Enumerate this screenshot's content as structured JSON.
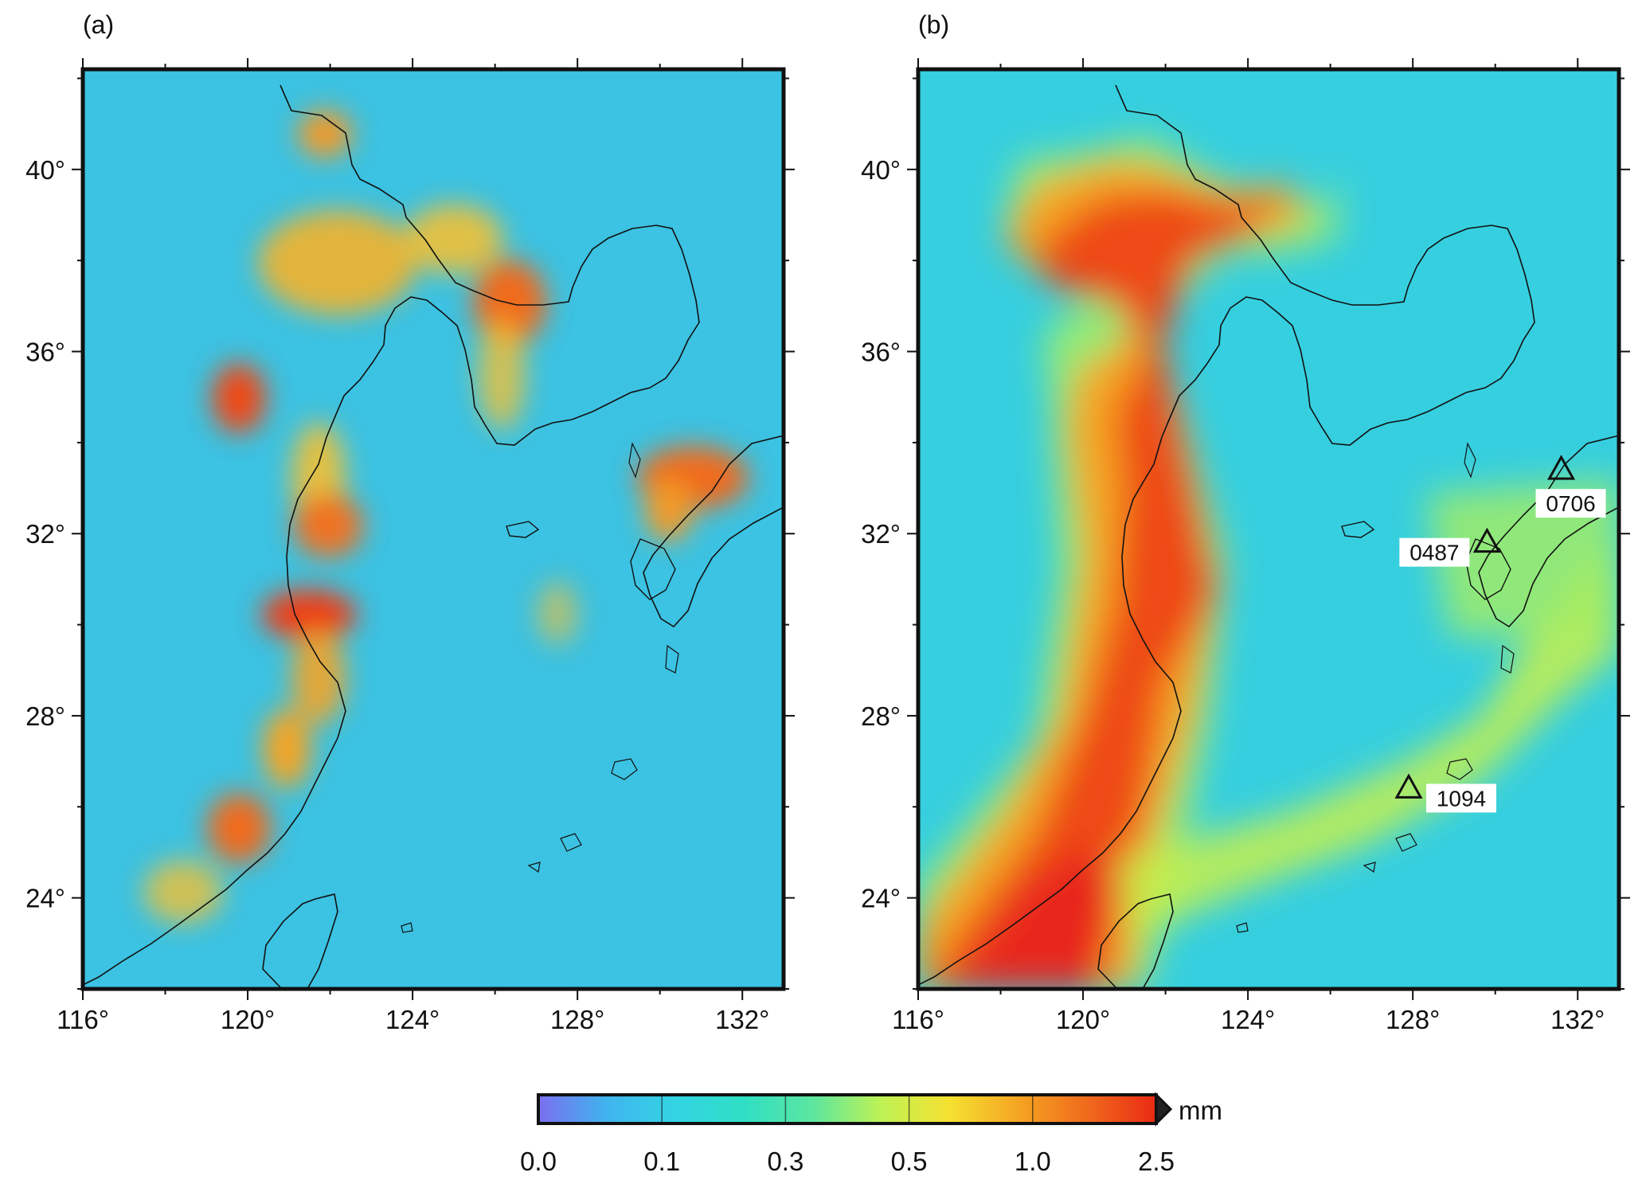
{
  "panels": [
    {
      "id": "a",
      "label": "(a)",
      "x_ticks": [
        "116°",
        "120°",
        "124°",
        "128°",
        "132°"
      ],
      "y_ticks": [
        "40°",
        "36°",
        "32°",
        "28°",
        "24°"
      ],
      "stations": []
    },
    {
      "id": "b",
      "label": "(b)",
      "x_ticks": [
        "116°",
        "120°",
        "124°",
        "128°",
        "132°"
      ],
      "y_ticks": [
        "40°",
        "36°",
        "32°",
        "28°",
        "24°"
      ],
      "stations": [
        {
          "name": "0706",
          "lon": 131.6,
          "lat": 33.4
        },
        {
          "name": "0487",
          "lon": 129.8,
          "lat": 31.8
        },
        {
          "name": "1094",
          "lon": 127.9,
          "lat": 26.4
        }
      ]
    }
  ],
  "map_extent": {
    "lon": [
      116,
      133
    ],
    "lat": [
      22,
      42.2
    ]
  },
  "colorbar": {
    "unit": "mm",
    "tick_labels": [
      "0.0",
      "0.1",
      "0.3",
      "0.5",
      "1.0",
      "2.5"
    ],
    "colors": [
      "#7b6ff0",
      "#3fb4ee",
      "#33d4e4",
      "#2fdfc4",
      "#5de6a0",
      "#bff254",
      "#f6e030",
      "#f5a422",
      "#f06a1c",
      "#ea2a14"
    ]
  }
}
